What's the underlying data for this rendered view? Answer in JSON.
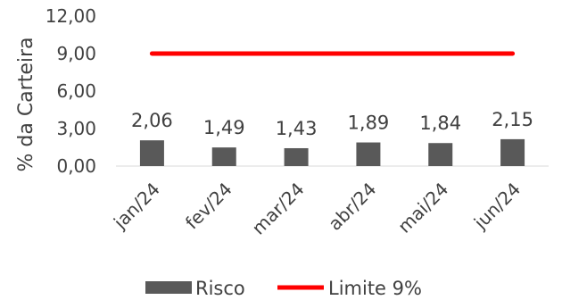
{
  "chart_data": {
    "type": "bar",
    "categories": [
      "jan/24",
      "fev/24",
      "mar/24",
      "abr/24",
      "mai/24",
      "jun/24"
    ],
    "series": [
      {
        "name": "Risco",
        "type": "bar",
        "values": [
          2.06,
          1.49,
          1.43,
          1.89,
          1.84,
          2.15
        ],
        "value_labels": [
          "2,06",
          "1,49",
          "1,43",
          "1,89",
          "1,84",
          "2,15"
        ],
        "color": "#595959"
      },
      {
        "name": "Limite 9%",
        "type": "line",
        "values": [
          9,
          9,
          9,
          9,
          9,
          9
        ],
        "color": "#ff0000"
      }
    ],
    "ylabel": "% da Carteira",
    "ylim": [
      0,
      12
    ],
    "yticks": [
      0,
      3,
      6,
      9,
      12
    ],
    "ytick_labels": [
      "0,00",
      "3,00",
      "6,00",
      "9,00",
      "12,00"
    ],
    "grid": false,
    "legend_position": "bottom"
  }
}
